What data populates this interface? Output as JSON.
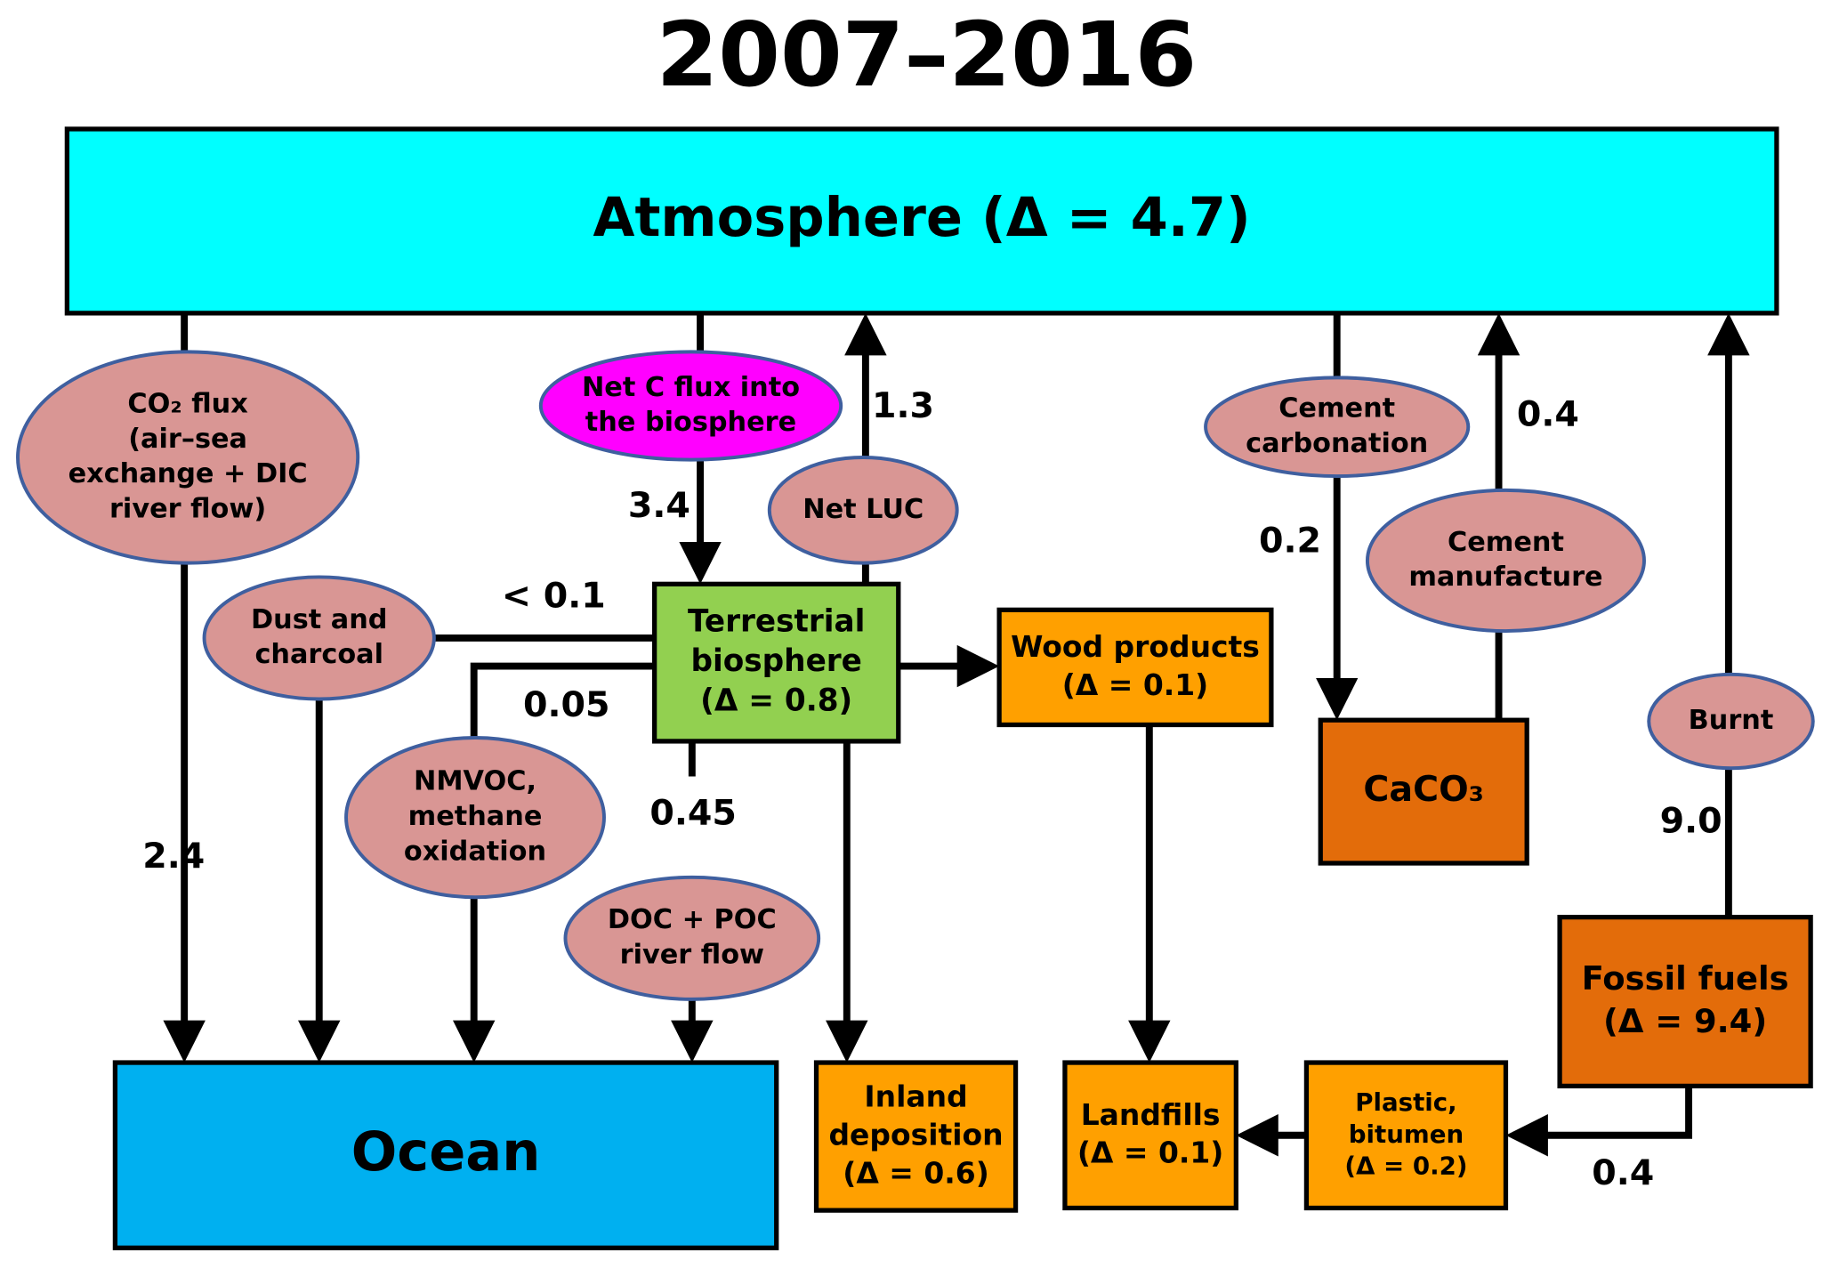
{
  "title": "2007–2016",
  "boxes": [
    {
      "lines": [
        "Atmosphere (Δ = 4.7)"
      ]
    },
    {
      "lines": [
        "Terrestrial",
        "biosphere",
        "(Δ = 0.8)"
      ]
    },
    {
      "lines": [
        "Wood products",
        "(Δ = 0.1)"
      ]
    },
    {
      "lines": [
        "CaCO₃"
      ]
    },
    {
      "lines": [
        "Fossil fuels",
        "(Δ = 9.4)"
      ]
    },
    {
      "lines": [
        "Ocean"
      ]
    },
    {
      "lines": [
        "Inland",
        "deposition",
        "(Δ = 0.6)"
      ]
    },
    {
      "lines": [
        "Landfills",
        "(Δ = 0.1)"
      ]
    },
    {
      "lines": [
        "Plastic,",
        "bitumen",
        "(Δ = 0.2)"
      ]
    }
  ],
  "processes": [
    {
      "lines": [
        "CO₂ flux",
        "(air–sea",
        "exchange + DIC",
        "river flow)"
      ]
    },
    {
      "lines": [
        "Net C flux into",
        "the biosphere"
      ]
    },
    {
      "lines": [
        "Net LUC"
      ]
    },
    {
      "lines": [
        "Cement",
        "carbonation"
      ]
    },
    {
      "lines": [
        "Cement",
        "manufacture"
      ]
    },
    {
      "lines": [
        "Burnt"
      ]
    },
    {
      "lines": [
        "Dust and",
        "charcoal"
      ]
    },
    {
      "lines": [
        "NMVOC,",
        "methane",
        "oxidation"
      ]
    },
    {
      "lines": [
        "DOC + POC",
        "river flow"
      ]
    }
  ],
  "fluxes": [
    "2.4",
    "3.4",
    "1.3",
    "0.2",
    "0.4",
    "9.0",
    "< 0.1",
    "0.05",
    "0.45",
    "0.4"
  ]
}
